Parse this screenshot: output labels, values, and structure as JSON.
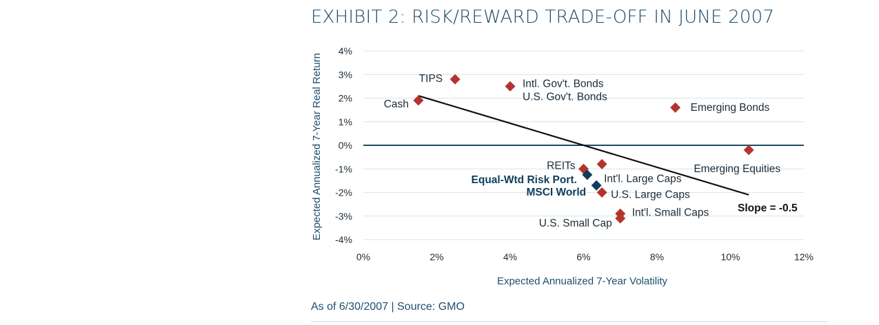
{
  "title": "EXHIBIT 2: RISK/REWARD TRADE-OFF IN JUNE 2007",
  "footer": {
    "source": "As of 6/30/2007 | Source: GMO"
  },
  "colors": {
    "asset": "#b5332e",
    "portfolio": "#0e3d5c",
    "zero_line": "#1c4a66",
    "grid": "#d6e4ec",
    "fit_line": "#111111"
  },
  "chart_data": {
    "type": "scatter",
    "xlabel": "Expected Annualized 7-Year Volatility",
    "ylabel": "Expected Annualized 7-Year Real Return",
    "xlim": [
      0,
      12
    ],
    "ylim": [
      -4,
      4
    ],
    "x_ticks": [
      0,
      2,
      4,
      6,
      8,
      10,
      12
    ],
    "y_ticks": [
      4,
      3,
      2,
      1,
      0,
      -1,
      -2,
      -3,
      -4
    ],
    "x_tick_labels": [
      "0%",
      "2%",
      "4%",
      "6%",
      "8%",
      "10%",
      "12%"
    ],
    "y_tick_labels": [
      "4%",
      "3%",
      "2%",
      "1%",
      "0%",
      "-1%",
      "-2%",
      "-3%",
      "-4%"
    ],
    "grid": true,
    "series": [
      {
        "group": "asset",
        "points": [
          {
            "label": "TIPS",
            "x": 2.5,
            "y": 2.8
          },
          {
            "label": "Cash",
            "x": 1.5,
            "y": 1.9
          },
          {
            "label": "Intl. Gov't. Bonds",
            "x": 4.0,
            "y": 2.5
          },
          {
            "label": "U.S. Gov't. Bonds",
            "x": 4.0,
            "y": 2.5
          },
          {
            "label": "Emerging Bonds",
            "x": 8.5,
            "y": 1.6
          },
          {
            "label": "Emerging Equities",
            "x": 10.5,
            "y": -0.2
          },
          {
            "label": "REITs",
            "x": 6.0,
            "y": -1.0
          },
          {
            "label": "Int'l. Large Caps",
            "x": 6.5,
            "y": -0.8
          },
          {
            "label": "U.S. Large Caps",
            "x": 6.5,
            "y": -2.0
          },
          {
            "label": "Int'l. Small Caps",
            "x": 7.0,
            "y": -2.9
          },
          {
            "label": "U.S. Small Cap",
            "x": 7.0,
            "y": -3.1
          }
        ]
      },
      {
        "group": "portfolio",
        "points": [
          {
            "label": "Equal-Wtd Risk Port.",
            "x": 6.1,
            "y": -1.25
          },
          {
            "label": "MSCI World",
            "x": 6.35,
            "y": -1.7
          }
        ]
      }
    ],
    "trend_line": {
      "label": "Slope = -0.5",
      "from": [
        1.5,
        2.1
      ],
      "to": [
        10.5,
        -2.1
      ]
    }
  }
}
